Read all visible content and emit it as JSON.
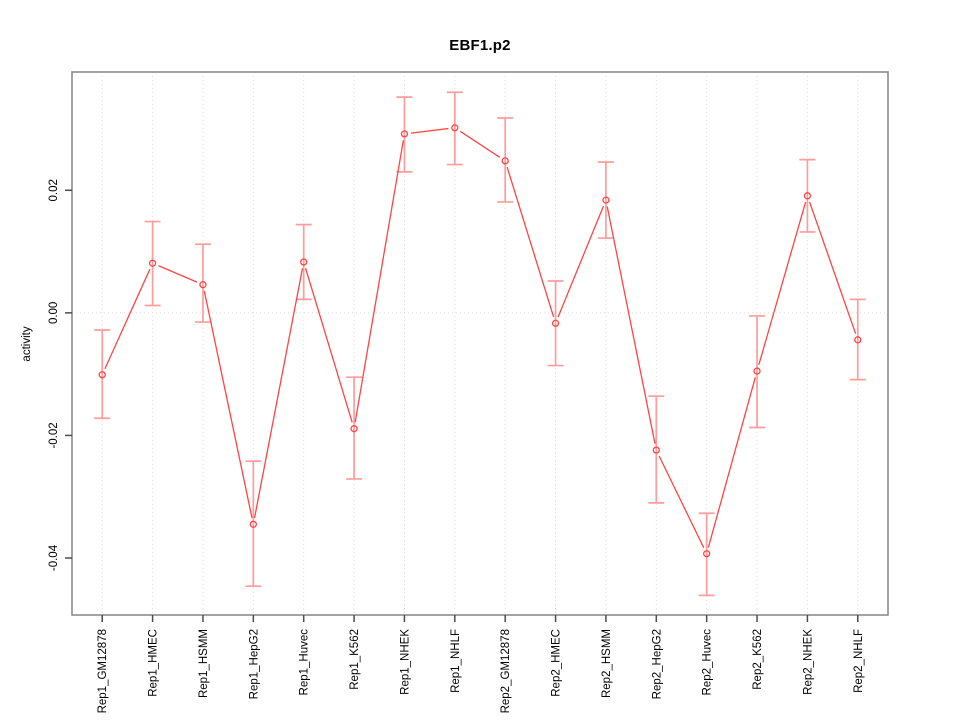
{
  "chart_data": {
    "type": "line",
    "title": "EBF1.p2",
    "xlabel": "",
    "ylabel": "activity",
    "categories": [
      "Rep1_GM12878",
      "Rep1_HMEC",
      "Rep1_HSMM",
      "Rep1_HepG2",
      "Rep1_Huvec",
      "Rep1_K562",
      "Rep1_NHEK",
      "Rep1_NHLF",
      "Rep2_GM12878",
      "Rep2_HMEC",
      "Rep2_HSMM",
      "Rep2_HepG2",
      "Rep2_Huvec",
      "Rep2_K562",
      "Rep2_NHEK",
      "Rep2_NHLF"
    ],
    "series": [
      {
        "name": "activity",
        "values": [
          -0.0101,
          0.0081,
          0.0046,
          -0.0345,
          0.0083,
          -0.0189,
          0.0292,
          0.0302,
          0.0248,
          -0.0017,
          0.0184,
          -0.0224,
          -0.0393,
          -0.0095,
          0.0191,
          -0.0044
        ],
        "lower": [
          -0.0172,
          0.0012,
          -0.0015,
          -0.0446,
          0.0022,
          -0.0271,
          0.023,
          0.0242,
          0.0181,
          -0.0086,
          0.0122,
          -0.031,
          -0.0461,
          -0.0187,
          0.0132,
          -0.0109
        ],
        "upper": [
          -0.0028,
          0.0149,
          0.0112,
          -0.0242,
          0.0144,
          -0.0105,
          0.0352,
          0.036,
          0.0318,
          0.0052,
          0.0246,
          -0.0136,
          -0.0327,
          -0.0005,
          0.025,
          0.0022
        ]
      }
    ],
    "y_ticks": [
      0.02,
      0.0,
      -0.02,
      -0.04
    ],
    "y_tick_labels": [
      "0.02",
      "0.00",
      "-0.02",
      "-0.04"
    ],
    "ylim": [
      -0.0493,
      0.0393
    ],
    "grid": {
      "vertical": "dotted line at every category",
      "horizontal": "dotted line at 0 only"
    },
    "legend": "none",
    "marker": "open-circle",
    "colors": {
      "line": "#FF4444",
      "error_bar": "#FF9C9C",
      "frame": "#8C8C8C",
      "tick": "#4D4D4D",
      "grid": "#DCDCDC",
      "text": "#000000",
      "background": "#FFFFFF"
    }
  }
}
